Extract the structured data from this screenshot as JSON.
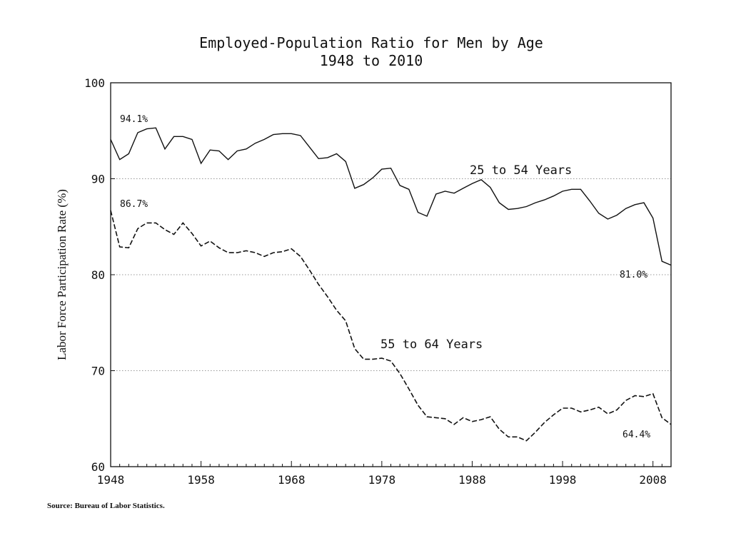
{
  "chart_data": {
    "type": "line",
    "title": "Employed-Population Ratio for Men by Age",
    "subtitle": "1948 to 2010",
    "xlabel": "",
    "ylabel": "Labor Force Participation Rate (%)",
    "xlim": [
      1948,
      2010
    ],
    "ylim": [
      60,
      100
    ],
    "x_ticks": [
      "1948",
      "1958",
      "1968",
      "1978",
      "1988",
      "1998",
      "2008"
    ],
    "y_ticks": [
      "60",
      "70",
      "80",
      "90",
      "100"
    ],
    "grid": "horizontal dotted",
    "source": "Source: Bureau of Labor Statistics.",
    "series": [
      {
        "name": "25 to 54 Years",
        "style": "solid",
        "x": [
          1948,
          1949,
          1950,
          1951,
          1952,
          1953,
          1954,
          1955,
          1956,
          1957,
          1958,
          1959,
          1960,
          1961,
          1962,
          1963,
          1964,
          1965,
          1966,
          1967,
          1968,
          1969,
          1970,
          1971,
          1972,
          1973,
          1974,
          1975,
          1976,
          1977,
          1978,
          1979,
          1980,
          1981,
          1982,
          1983,
          1984,
          1985,
          1986,
          1987,
          1988,
          1989,
          1990,
          1991,
          1992,
          1993,
          1994,
          1995,
          1996,
          1997,
          1998,
          1999,
          2000,
          2001,
          2002,
          2003,
          2004,
          2005,
          2006,
          2007,
          2008,
          2009,
          2010
        ],
        "values": [
          94.1,
          92.0,
          92.6,
          94.8,
          95.2,
          95.3,
          93.1,
          94.4,
          94.4,
          94.1,
          91.6,
          93.0,
          92.9,
          92.0,
          92.9,
          93.1,
          93.7,
          94.1,
          94.6,
          94.7,
          94.7,
          94.5,
          93.3,
          92.1,
          92.2,
          92.6,
          91.8,
          89.0,
          89.4,
          90.1,
          91.0,
          91.1,
          89.3,
          88.9,
          86.5,
          86.1,
          88.4,
          88.7,
          88.5,
          89.0,
          89.5,
          89.9,
          89.1,
          87.5,
          86.8,
          86.9,
          87.1,
          87.5,
          87.8,
          88.2,
          88.7,
          88.9,
          88.9,
          87.7,
          86.4,
          85.8,
          86.2,
          86.9,
          87.3,
          87.5,
          85.9,
          81.4,
          81.0
        ],
        "annotations": {
          "start": "94.1%",
          "end": "81.0%"
        }
      },
      {
        "name": "55 to 64 Years",
        "style": "dashed",
        "x": [
          1948,
          1949,
          1950,
          1951,
          1952,
          1953,
          1954,
          1955,
          1956,
          1957,
          1958,
          1959,
          1960,
          1961,
          1962,
          1963,
          1964,
          1965,
          1966,
          1967,
          1968,
          1969,
          1970,
          1971,
          1972,
          1973,
          1974,
          1975,
          1976,
          1977,
          1978,
          1979,
          1980,
          1981,
          1982,
          1983,
          1984,
          1985,
          1986,
          1987,
          1988,
          1989,
          1990,
          1991,
          1992,
          1993,
          1994,
          1995,
          1996,
          1997,
          1998,
          1999,
          2000,
          2001,
          2002,
          2003,
          2004,
          2005,
          2006,
          2007,
          2008,
          2009,
          2010
        ],
        "values": [
          86.7,
          82.9,
          82.8,
          84.8,
          85.4,
          85.4,
          84.7,
          84.2,
          85.4,
          84.3,
          83.0,
          83.5,
          82.8,
          82.3,
          82.3,
          82.5,
          82.3,
          81.9,
          82.3,
          82.4,
          82.7,
          81.9,
          80.5,
          79.0,
          77.7,
          76.3,
          75.2,
          72.3,
          71.2,
          71.2,
          71.3,
          71.0,
          69.7,
          68.1,
          66.4,
          65.2,
          65.1,
          65.0,
          64.4,
          65.1,
          64.7,
          64.9,
          65.2,
          63.9,
          63.1,
          63.1,
          62.7,
          63.6,
          64.6,
          65.4,
          66.1,
          66.1,
          65.7,
          65.9,
          66.2,
          65.5,
          65.9,
          66.9,
          67.4,
          67.3,
          67.6,
          65.1,
          64.4
        ],
        "annotations": {
          "start": "86.7%",
          "end": "64.4%"
        }
      }
    ]
  }
}
